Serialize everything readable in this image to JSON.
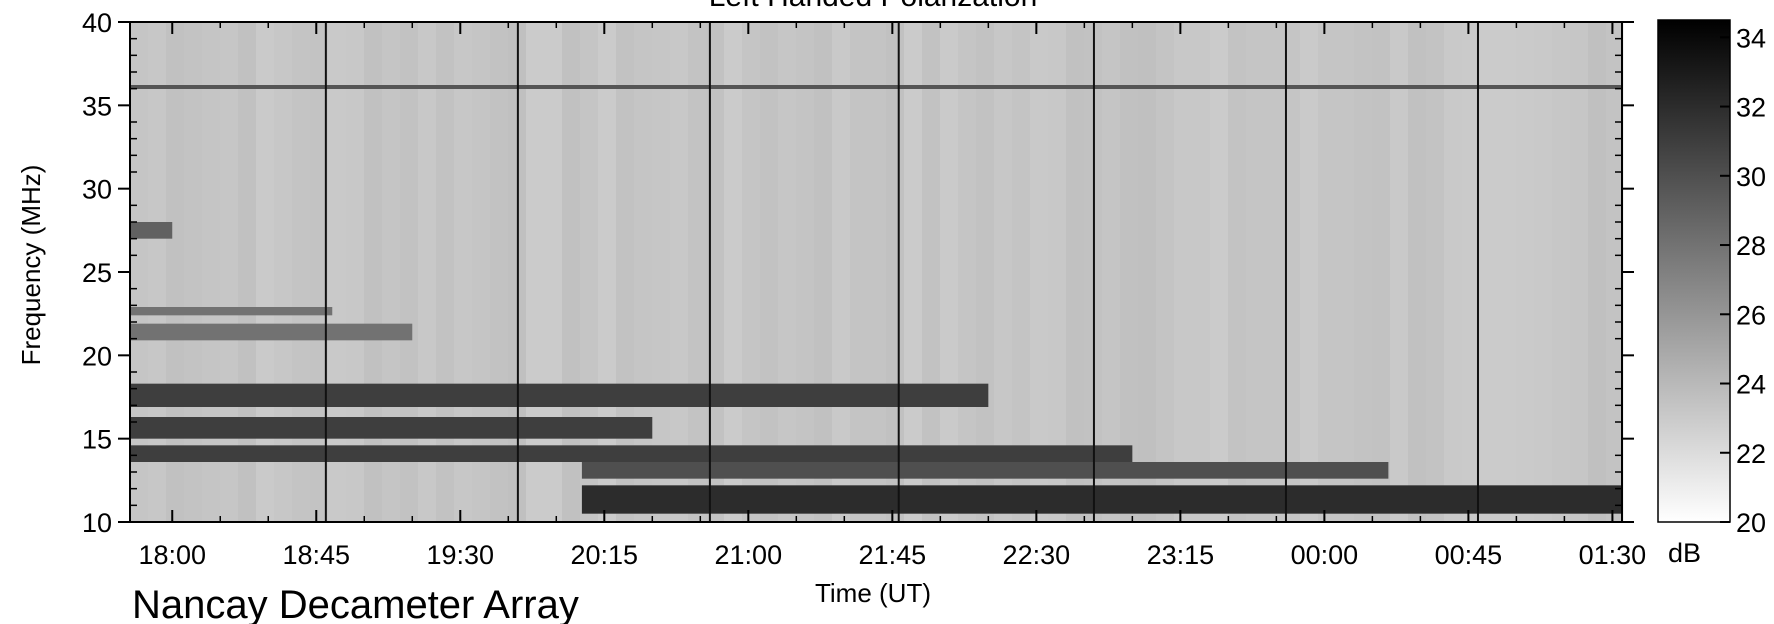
{
  "chart_data": {
    "type": "heatmap",
    "title": "Left Handed Polarization",
    "xlabel": "Time (UT)",
    "ylabel": "Frequency (MHz)",
    "x_ticks": [
      "18:00",
      "18:45",
      "19:30",
      "20:15",
      "21:00",
      "21:45",
      "22:30",
      "23:15",
      "00:00",
      "00:45",
      "01:30"
    ],
    "y_ticks": [
      10,
      15,
      20,
      25,
      30,
      35,
      40
    ],
    "ylim": [
      10,
      40
    ],
    "xlim_hours": [
      17.78,
      25.55
    ],
    "colorbar": {
      "label": "dB",
      "ticks": [
        20,
        22,
        24,
        26,
        28,
        30,
        32,
        34
      ],
      "range": [
        20,
        34.5
      ],
      "colors": [
        "#ffffff",
        "#000000"
      ]
    },
    "background_level_db": 24,
    "instrument": "Nancay Decameter Array",
    "interference_line_mhz": 36.1,
    "calibration_times": [
      "18:48",
      "19:48",
      "20:48",
      "21:47",
      "22:48",
      "23:48",
      "00:48"
    ],
    "emission_bands": [
      {
        "f_low": 10.5,
        "f_high": 12.2,
        "t_start": "20:08",
        "t_end": "01:35",
        "db": 32
      },
      {
        "f_low": 12.6,
        "f_high": 13.6,
        "t_start": "20:08",
        "t_end": "00:20",
        "db": 30
      },
      {
        "f_low": 13.6,
        "f_high": 14.6,
        "t_start": "17:45",
        "t_end": "23:00",
        "db": 31
      },
      {
        "f_low": 15.0,
        "f_high": 16.3,
        "t_start": "17:45",
        "t_end": "20:30",
        "db": 31
      },
      {
        "f_low": 16.9,
        "f_high": 18.3,
        "t_start": "17:45",
        "t_end": "22:15",
        "db": 31
      },
      {
        "f_low": 20.9,
        "f_high": 21.9,
        "t_start": "17:45",
        "t_end": "19:15",
        "db": 28
      },
      {
        "f_low": 22.4,
        "f_high": 22.9,
        "t_start": "17:45",
        "t_end": "18:50",
        "db": 28
      },
      {
        "f_low": 27.0,
        "f_high": 28.0,
        "t_start": "17:45",
        "t_end": "18:00",
        "db": 29
      }
    ]
  }
}
